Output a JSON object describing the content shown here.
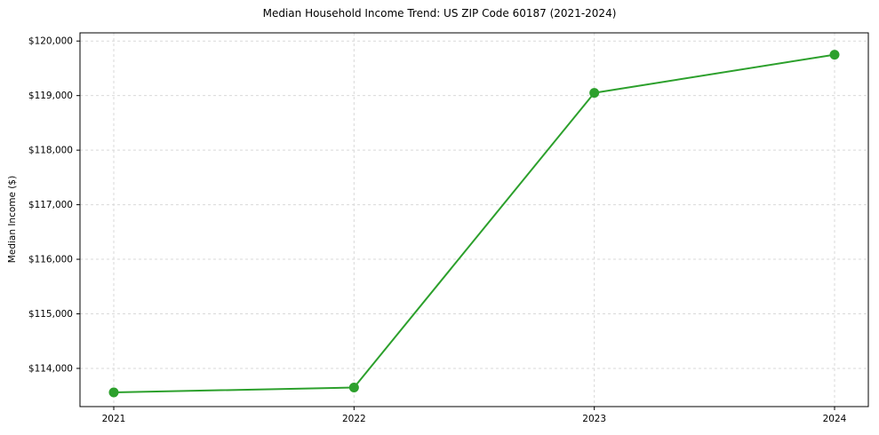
{
  "chart_data": {
    "type": "line",
    "title": "Median Household Income Trend: US ZIP Code 60187 (2021-2024)",
    "ylabel": "Median Income ($)",
    "xlabel": "",
    "x": [
      "2021",
      "2022",
      "2023",
      "2024"
    ],
    "series": [
      {
        "name": "Median Household Income",
        "values": [
          113560,
          113650,
          119050,
          119750
        ]
      }
    ],
    "yticks": [
      114000,
      115000,
      116000,
      117000,
      118000,
      119000,
      120000
    ],
    "ylim": [
      113300,
      120150
    ],
    "grid": "dashed",
    "legend_position": "none",
    "line_color": "#2ca02c",
    "marker": "circle",
    "marker_color": "#2ca02c",
    "grid_color": "#d9d9d9",
    "axis_color": "#000000",
    "background_color": "#ffffff"
  }
}
